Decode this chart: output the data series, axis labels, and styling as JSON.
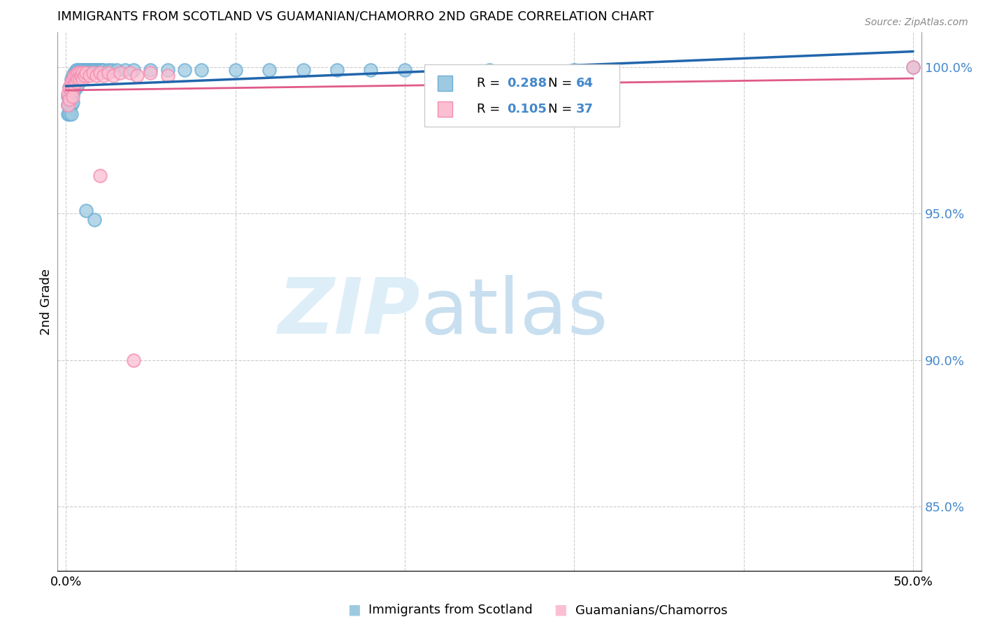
{
  "title": "IMMIGRANTS FROM SCOTLAND VS GUAMANIAN/CHAMORRO 2ND GRADE CORRELATION CHART",
  "source": "Source: ZipAtlas.com",
  "ylabel": "2nd Grade",
  "xlim": [
    -0.005,
    0.505
  ],
  "ylim": [
    0.828,
    1.012
  ],
  "xticks": [
    0.0,
    0.1,
    0.2,
    0.3,
    0.4,
    0.5
  ],
  "xticklabels": [
    "0.0%",
    "",
    "",
    "",
    "",
    "50.0%"
  ],
  "yticks_right": [
    0.85,
    0.9,
    0.95,
    1.0
  ],
  "yticklabels_right": [
    "85.0%",
    "90.0%",
    "95.0%",
    "100.0%"
  ],
  "color_blue": "#9ecae1",
  "color_pink": "#fcbfd2",
  "color_blue_edge": "#6baed6",
  "color_pink_edge": "#f48fb1",
  "color_blue_line": "#2166ac",
  "color_pink_line": "#e05a8a",
  "blue_x": [
    0.001,
    0.001,
    0.001,
    0.002,
    0.002,
    0.002,
    0.002,
    0.003,
    0.003,
    0.003,
    0.003,
    0.003,
    0.004,
    0.004,
    0.004,
    0.004,
    0.005,
    0.005,
    0.005,
    0.006,
    0.006,
    0.006,
    0.007,
    0.007,
    0.007,
    0.008,
    0.008,
    0.009,
    0.009,
    0.01,
    0.01,
    0.011,
    0.012,
    0.013,
    0.014,
    0.015,
    0.016,
    0.017,
    0.018,
    0.019,
    0.02,
    0.021,
    0.022,
    0.025,
    0.027,
    0.03,
    0.035,
    0.04,
    0.05,
    0.06,
    0.07,
    0.08,
    0.1,
    0.12,
    0.14,
    0.16,
    0.18,
    0.2,
    0.25,
    0.3,
    0.012,
    0.017,
    0.5
  ],
  "blue_y": [
    0.99,
    0.987,
    0.984,
    0.993,
    0.99,
    0.987,
    0.984,
    0.996,
    0.993,
    0.99,
    0.987,
    0.984,
    0.997,
    0.994,
    0.991,
    0.988,
    0.998,
    0.995,
    0.992,
    0.999,
    0.996,
    0.993,
    0.999,
    0.997,
    0.994,
    0.999,
    0.997,
    0.999,
    0.997,
    0.999,
    0.998,
    0.999,
    0.999,
    0.999,
    0.999,
    0.999,
    0.999,
    0.999,
    0.999,
    0.999,
    0.999,
    0.999,
    0.999,
    0.999,
    0.999,
    0.999,
    0.999,
    0.999,
    0.999,
    0.999,
    0.999,
    0.999,
    0.999,
    0.999,
    0.999,
    0.999,
    0.999,
    0.999,
    0.999,
    0.999,
    0.951,
    0.948,
    1.0
  ],
  "pink_x": [
    0.001,
    0.001,
    0.002,
    0.002,
    0.003,
    0.003,
    0.004,
    0.004,
    0.004,
    0.005,
    0.005,
    0.006,
    0.006,
    0.007,
    0.007,
    0.008,
    0.008,
    0.009,
    0.01,
    0.01,
    0.011,
    0.012,
    0.014,
    0.016,
    0.018,
    0.02,
    0.022,
    0.025,
    0.028,
    0.032,
    0.038,
    0.042,
    0.05,
    0.06,
    0.5,
    0.02,
    0.04
  ],
  "pink_y": [
    0.991,
    0.987,
    0.993,
    0.989,
    0.995,
    0.992,
    0.996,
    0.993,
    0.99,
    0.997,
    0.994,
    0.997,
    0.995,
    0.998,
    0.996,
    0.998,
    0.996,
    0.997,
    0.998,
    0.996,
    0.997,
    0.998,
    0.997,
    0.998,
    0.997,
    0.998,
    0.997,
    0.998,
    0.997,
    0.998,
    0.998,
    0.997,
    0.998,
    0.997,
    1.0,
    0.963,
    0.9
  ],
  "grid_color": "#cccccc",
  "right_tick_color": "#4488cc",
  "title_fontsize": 13,
  "tick_fontsize": 13,
  "legend_fontsize": 13
}
